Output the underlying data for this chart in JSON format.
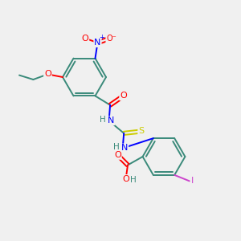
{
  "background_color": "#f0f0f0",
  "bond_color": "#3a8a7a",
  "atom_colors": {
    "O": "#ff0000",
    "N": "#0000ff",
    "S": "#cccc00",
    "I": "#cc44cc",
    "H": "#3a8a7a",
    "C": "#3a8a7a"
  },
  "figsize": [
    3.0,
    3.0
  ],
  "dpi": 100,
  "xlim": [
    0,
    10
  ],
  "ylim": [
    0,
    10
  ]
}
